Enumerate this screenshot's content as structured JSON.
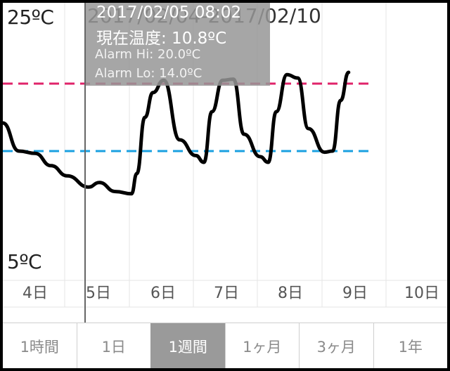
{
  "chart": {
    "range_title": "2017/02/04-2017/02/10",
    "y_max_label": "25ºC",
    "y_min_label": "5ºC",
    "alarm_hi_color": "#e0236a",
    "alarm_lo_color": "#1aa0e0",
    "line_color": "#000000"
  },
  "tooltip": {
    "datetime": "2017/02/05 08:02",
    "current_temp": "現在温度: 10.8ºC",
    "alarm_hi": "Alarm Hi: 20.0ºC",
    "alarm_lo": "Alarm Lo: 14.0ºC"
  },
  "days": [
    "4日",
    "5日",
    "6日",
    "7日",
    "8日",
    "9日",
    "10日"
  ],
  "tabs": [
    {
      "label": "1時間",
      "active": false
    },
    {
      "label": "1日",
      "active": false
    },
    {
      "label": "1週間",
      "active": true
    },
    {
      "label": "1ヶ月",
      "active": false
    },
    {
      "label": "3ヶ月",
      "active": false
    },
    {
      "label": "1年",
      "active": false
    }
  ],
  "chart_data": {
    "type": "line",
    "ylim": [
      5,
      25
    ],
    "alarm_hi": 20.0,
    "alarm_lo": 14.0,
    "series": [
      {
        "x": [
          "2017/02/04 00:00",
          "2017/02/04 06:00",
          "2017/02/04 12:00",
          "2017/02/04 18:00",
          "2017/02/05 00:00",
          "2017/02/05 08:00",
          "2017/02/05 12:00",
          "2017/02/05 18:00",
          "2017/02/06 00:00",
          "2017/02/06 02:00",
          "2017/02/06 05:00",
          "2017/02/06 08:00",
          "2017/02/06 12:00",
          "2017/02/06 18:00",
          "2017/02/07 00:00",
          "2017/02/07 03:00",
          "2017/02/07 06:00",
          "2017/02/07 10:00",
          "2017/02/07 14:00",
          "2017/02/07 18:00",
          "2017/02/08 00:00",
          "2017/02/08 03:00",
          "2017/02/08 06:00",
          "2017/02/08 10:00",
          "2017/02/08 14:00",
          "2017/02/08 18:00",
          "2017/02/09 00:00",
          "2017/02/09 03:00",
          "2017/02/09 06:00",
          "2017/02/09 09:00"
        ],
        "values": [
          16.5,
          14.0,
          13.8,
          12.7,
          11.8,
          10.8,
          11.2,
          10.4,
          10.2,
          12.0,
          17.0,
          19.2,
          20.3,
          15.0,
          13.6,
          13.0,
          17.5,
          20.3,
          20.4,
          15.5,
          13.5,
          13.0,
          17.5,
          20.8,
          20.5,
          16.0,
          13.9,
          14.0,
          18.5,
          21.0
        ]
      }
    ]
  }
}
